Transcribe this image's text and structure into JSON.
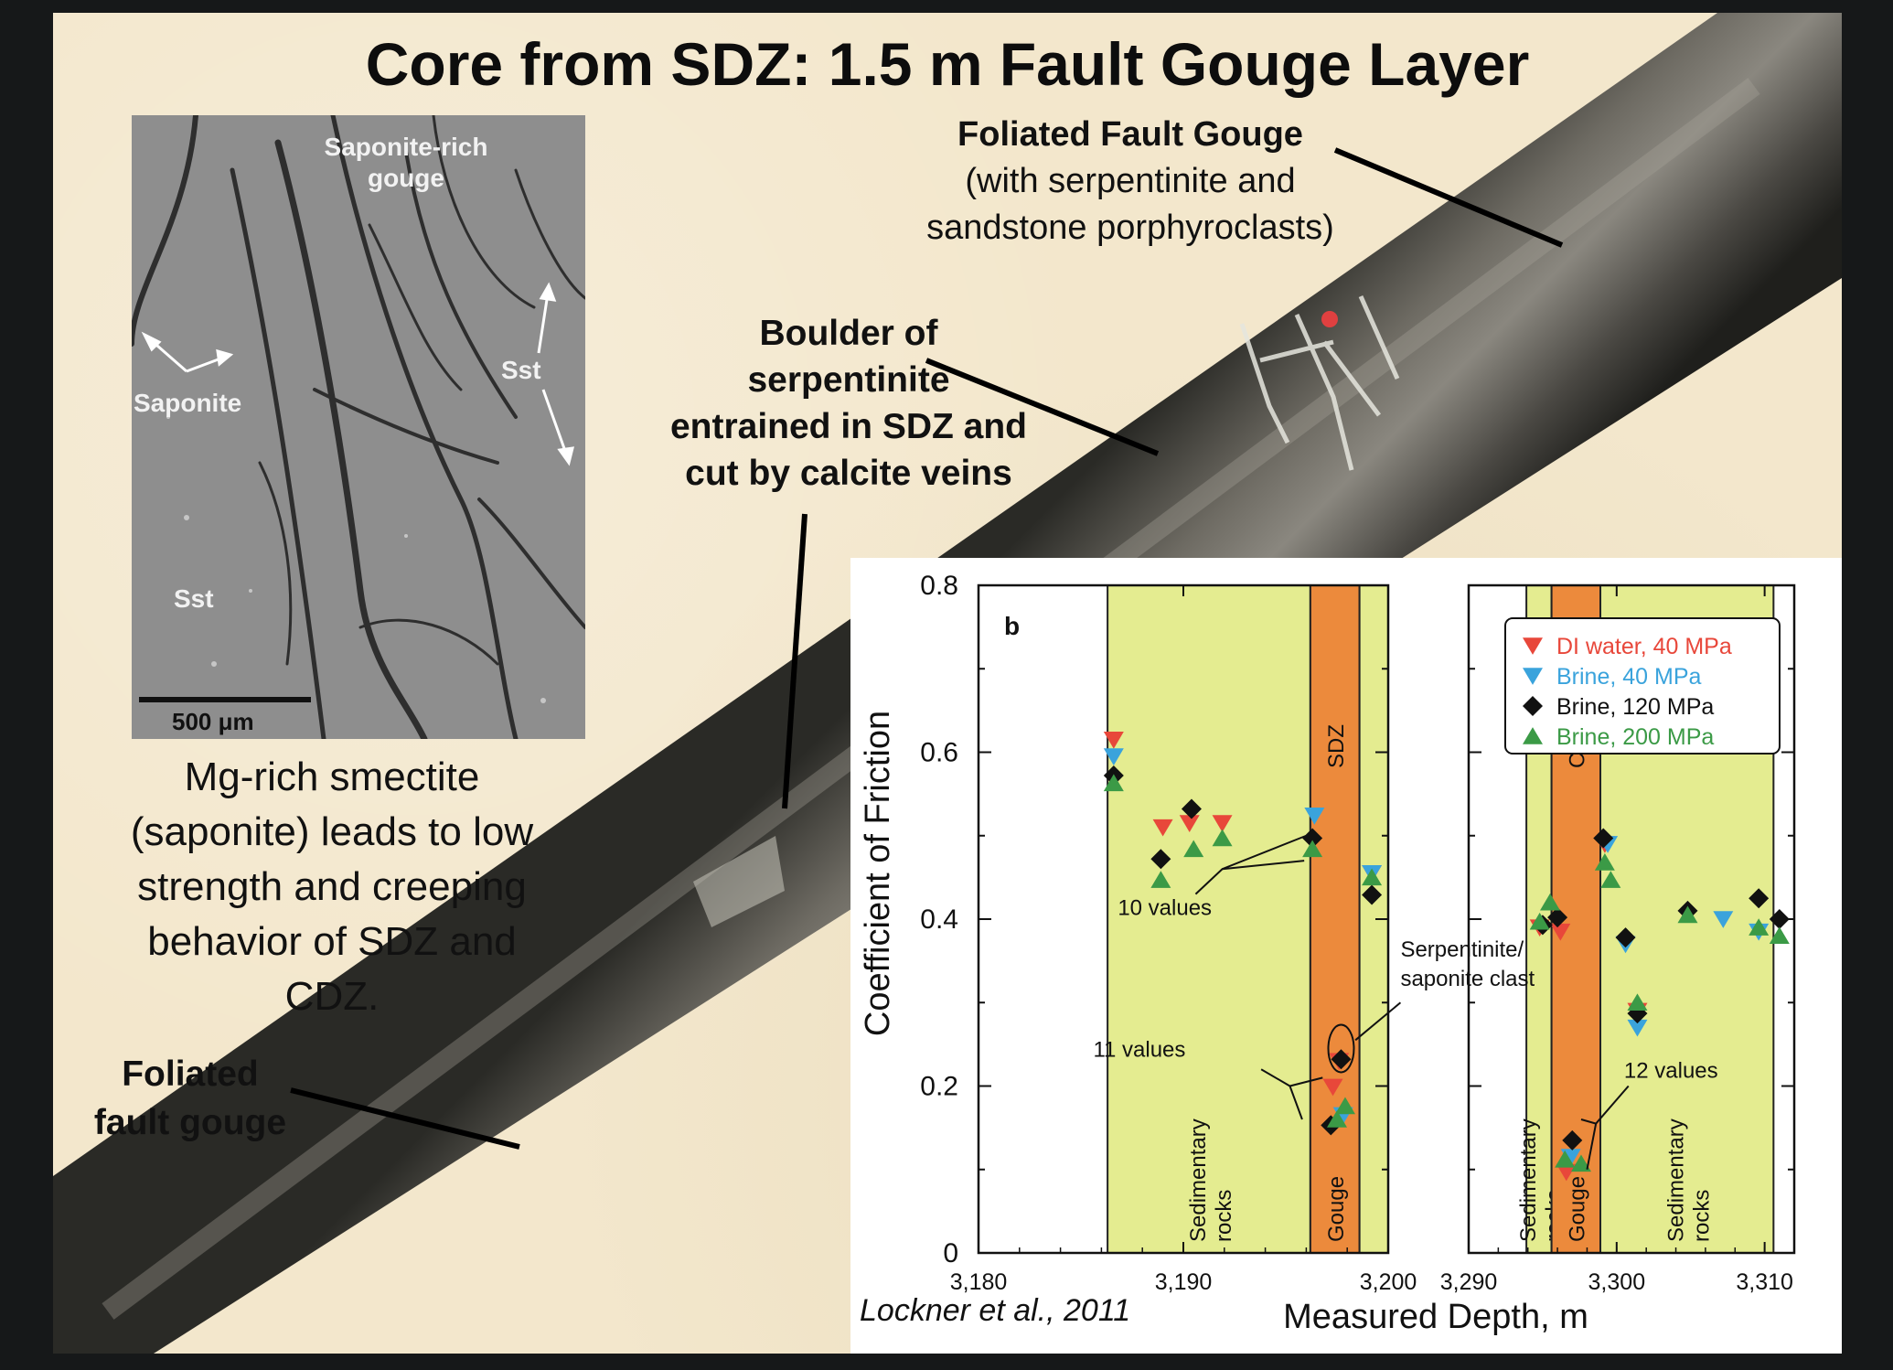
{
  "slide": {
    "title": "Core from SDZ: 1.5 m Fault Gouge Layer",
    "annotations": {
      "foliated_top": {
        "line1": "Foliated Fault Gouge",
        "line2": "(with serpentinite and",
        "line3": "sandstone porphyroclasts)"
      },
      "boulder": {
        "line1": "Boulder of",
        "line2": "serpentinite",
        "line3": "entrained in SDZ and",
        "line4": "cut by calcite veins"
      },
      "foliated_bottom": {
        "line1": "Foliated",
        "line2": "fault gouge"
      }
    },
    "sem_image": {
      "labels": {
        "saponite_rich": "Saponite-rich",
        "gouge": "gouge",
        "saponite": "Saponite",
        "sst_right": "Sst",
        "sst_left": "Sst"
      },
      "scale_bar": "500 μm"
    },
    "caption": {
      "line1": "Mg-rich smectite",
      "line2": "(saponite) leads to low",
      "line3": "strength and creeping",
      "line4": "behavior of SDZ and",
      "line5": "CDZ."
    },
    "citation": "Lockner et al., 2011"
  },
  "chart_data": {
    "type": "scatter",
    "panel_label": "b",
    "ylabel": "Coefficient of Friction",
    "xlabel": "Measured Depth, m",
    "ylim": [
      0,
      0.8
    ],
    "yticks": [
      "0",
      "0.2",
      "0.4",
      "0.6",
      "0.8"
    ],
    "left_panel": {
      "xlim": [
        3180,
        3200
      ],
      "xticks": [
        "3,180",
        "3,190",
        "3,200"
      ],
      "zones": [
        {
          "type": "sedimentary",
          "from": 3186.3,
          "to": 3196.2,
          "label_a": "Sedimentary",
          "label_b": "rocks"
        },
        {
          "type": "gouge",
          "from": 3196.2,
          "to": 3198.6,
          "label": "Gouge",
          "top_label": "SDZ"
        },
        {
          "type": "sedimentary",
          "from": 3198.6,
          "to": 3201.0
        }
      ]
    },
    "right_panel": {
      "xlim": [
        3290,
        3312
      ],
      "xticks": [
        "3,290",
        "3,300",
        "3,310"
      ],
      "zones": [
        {
          "type": "sedimentary",
          "from": 3293.9,
          "to": 3295.6,
          "label_a": "Sedimentary",
          "label_b": "rocks"
        },
        {
          "type": "gouge",
          "from": 3295.6,
          "to": 3298.9,
          "label": "Gouge",
          "top_label": "CDZ"
        },
        {
          "type": "sedimentary",
          "from": 3298.9,
          "to": 3310.6,
          "label_a": "Sedimentary",
          "label_b": "rocks"
        }
      ]
    },
    "series": [
      {
        "name": "DI water, 40 MPa",
        "color": "#e8473a",
        "marker": "triangle-down",
        "points": [
          [
            3186.6,
            0.615
          ],
          [
            3189.0,
            0.51
          ],
          [
            3190.3,
            0.515
          ],
          [
            3191.9,
            0.515
          ],
          [
            3197.3,
            0.199
          ],
          [
            3197.6,
            0.23
          ],
          [
            3199.2,
            0.455
          ],
          [
            3294.8,
            0.39
          ],
          [
            3296.2,
            0.385
          ],
          [
            3296.6,
            0.097
          ],
          [
            3299.2,
            0.49
          ],
          [
            3301.4,
            0.29
          ]
        ]
      },
      {
        "name": "Brine, 40 MPa",
        "color": "#3aa3dc",
        "marker": "triangle-down",
        "points": [
          [
            3186.6,
            0.595
          ],
          [
            3196.4,
            0.524
          ],
          [
            3197.8,
            0.165
          ],
          [
            3199.2,
            0.455
          ],
          [
            3296.9,
            0.115
          ],
          [
            3299.4,
            0.49
          ],
          [
            3300.6,
            0.37
          ],
          [
            3301.4,
            0.27
          ],
          [
            3307.2,
            0.4
          ],
          [
            3309.6,
            0.385
          ]
        ]
      },
      {
        "name": "Brine, 120 MPa",
        "color": "#111111",
        "marker": "diamond",
        "points": [
          [
            3186.6,
            0.572
          ],
          [
            3188.9,
            0.472
          ],
          [
            3190.4,
            0.532
          ],
          [
            3196.3,
            0.497
          ],
          [
            3197.2,
            0.153
          ],
          [
            3197.7,
            0.232
          ],
          [
            3199.2,
            0.429
          ],
          [
            3295.0,
            0.393
          ],
          [
            3296.0,
            0.402
          ],
          [
            3297.0,
            0.135
          ],
          [
            3299.1,
            0.497
          ],
          [
            3300.6,
            0.378
          ],
          [
            3301.4,
            0.287
          ],
          [
            3304.8,
            0.41
          ],
          [
            3309.6,
            0.425
          ],
          [
            3311.0,
            0.4
          ]
        ]
      },
      {
        "name": "Brine, 200 MPa",
        "color": "#3b9a46",
        "marker": "triangle-up",
        "points": [
          [
            3186.6,
            0.563
          ],
          [
            3188.9,
            0.447
          ],
          [
            3190.5,
            0.484
          ],
          [
            3191.9,
            0.497
          ],
          [
            3196.3,
            0.484
          ],
          [
            3197.5,
            0.16
          ],
          [
            3197.9,
            0.176
          ],
          [
            3199.2,
            0.45
          ],
          [
            3294.8,
            0.397
          ],
          [
            3295.5,
            0.42
          ],
          [
            3296.5,
            0.112
          ],
          [
            3297.6,
            0.107
          ],
          [
            3299.2,
            0.468
          ],
          [
            3299.6,
            0.447
          ],
          [
            3301.4,
            0.3
          ],
          [
            3304.8,
            0.405
          ],
          [
            3309.6,
            0.39
          ],
          [
            3311.0,
            0.38
          ]
        ]
      }
    ],
    "annotations": {
      "ten_values": "10 values",
      "eleven_values": "11 values",
      "twelve_values": "12 values",
      "clast_a": "Serpentinite/",
      "clast_b": "saponite clast"
    }
  }
}
